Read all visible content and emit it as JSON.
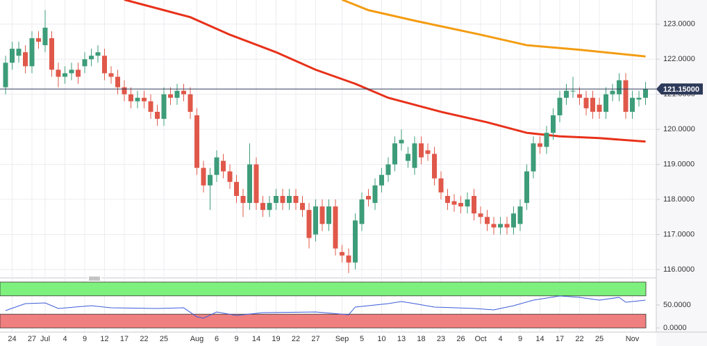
{
  "chart_data": [
    {
      "type": "candlestick",
      "categories": [
        null,
        "24",
        null,
        null,
        "27",
        null,
        "Jul",
        null,
        null,
        "4",
        null,
        null,
        "9",
        null,
        null,
        "12",
        null,
        null,
        "17",
        null,
        null,
        "22",
        null,
        null,
        "25",
        null,
        null,
        null,
        null,
        "Aug",
        null,
        null,
        "6",
        null,
        null,
        "9",
        null,
        null,
        "14",
        null,
        null,
        "19",
        null,
        null,
        "22",
        null,
        null,
        "27",
        null,
        null,
        null,
        "Sep",
        null,
        null,
        "5",
        null,
        null,
        "10",
        null,
        null,
        "13",
        null,
        null,
        "18",
        null,
        null,
        "23",
        null,
        null,
        "26",
        null,
        null,
        "Oct",
        null,
        null,
        "4",
        null,
        null,
        "9",
        null,
        null,
        "14",
        null,
        null,
        "17",
        null,
        null,
        "22",
        null,
        null,
        "25",
        null,
        null,
        null,
        null,
        "Nov",
        null,
        null
      ],
      "open": [
        121.2,
        121.9,
        122.1,
        122.2,
        121.8,
        122.6,
        122.4,
        122.6,
        121.7,
        121.5,
        121.6,
        121.7,
        121.8,
        122.0,
        122.1,
        122.1,
        121.6,
        121.5,
        121.2,
        121.0,
        120.8,
        120.9,
        120.8,
        120.5,
        120.3,
        121.0,
        120.9,
        121.1,
        121.0,
        120.4,
        118.9,
        118.4,
        118.7,
        119.1,
        118.8,
        118.5,
        118.1,
        117.9,
        119.0,
        117.9,
        117.7,
        117.9,
        118.1,
        117.9,
        118.1,
        117.9,
        117.7,
        117.0,
        117.8,
        117.3,
        117.8,
        116.5,
        116.4,
        116.2,
        117.3,
        118.1,
        117.9,
        118.4,
        118.7,
        119.0,
        119.6,
        119.1,
        118.9,
        119.6,
        119.4,
        119.3,
        118.6,
        118.1,
        117.95,
        117.9,
        117.8,
        118.1,
        117.6,
        117.5,
        117.3,
        117.2,
        117.3,
        117.2,
        117.3,
        117.9,
        118.8,
        119.6,
        119.5,
        119.9,
        120.4,
        120.9,
        121.1,
        121.0,
        120.9,
        120.9,
        120.7,
        120.5,
        121.0,
        121.0,
        121.4,
        120.5,
        120.85,
        120.9
      ],
      "high": [
        122.1,
        122.5,
        122.5,
        122.4,
        122.8,
        122.8,
        123.4,
        122.8,
        121.9,
        121.8,
        121.9,
        121.9,
        122.2,
        122.3,
        122.4,
        122.3,
        121.8,
        121.7,
        121.4,
        121.2,
        121.1,
        121.1,
        121.0,
        120.7,
        121.2,
        121.2,
        121.3,
        121.3,
        121.2,
        120.6,
        119.1,
        118.9,
        119.4,
        119.3,
        119.0,
        118.7,
        118.3,
        119.6,
        119.2,
        118.1,
        118.1,
        118.3,
        118.3,
        118.3,
        118.3,
        118.1,
        117.9,
        118.0,
        118.0,
        118.0,
        118.0,
        116.7,
        116.6,
        117.6,
        118.2,
        118.3,
        118.6,
        118.9,
        119.2,
        119.8,
        120.0,
        119.5,
        119.8,
        119.8,
        119.6,
        119.5,
        118.8,
        118.3,
        118.15,
        118.1,
        118.2,
        118.3,
        117.8,
        117.7,
        117.5,
        117.5,
        117.5,
        117.8,
        118.0,
        119.0,
        119.8,
        119.8,
        120.1,
        120.6,
        121.1,
        121.3,
        121.5,
        121.2,
        121.1,
        121.1,
        120.9,
        121.2,
        121.3,
        121.6,
        121.6,
        121.1,
        121.1,
        121.35
      ],
      "low": [
        121.0,
        121.7,
        121.9,
        121.6,
        121.6,
        122.3,
        122.2,
        121.5,
        121.2,
        121.3,
        121.4,
        121.3,
        121.6,
        121.8,
        121.9,
        121.4,
        121.3,
        121.0,
        120.8,
        120.6,
        120.6,
        120.6,
        120.3,
        120.1,
        120.1,
        120.7,
        120.7,
        120.8,
        120.3,
        118.7,
        118.2,
        117.7,
        118.5,
        118.6,
        118.3,
        117.9,
        117.5,
        117.7,
        117.7,
        117.5,
        117.5,
        117.7,
        117.7,
        117.7,
        117.7,
        117.5,
        116.6,
        116.8,
        117.1,
        117.1,
        116.4,
        116.2,
        115.9,
        116.0,
        117.1,
        117.8,
        117.7,
        118.2,
        118.5,
        118.8,
        119.4,
        118.9,
        118.7,
        119.0,
        119.1,
        118.4,
        118.0,
        117.7,
        117.65,
        117.6,
        117.6,
        117.4,
        117.3,
        117.1,
        117.0,
        117.0,
        117.0,
        117.0,
        117.1,
        117.7,
        118.6,
        119.3,
        119.3,
        119.7,
        120.2,
        120.7,
        120.9,
        120.7,
        120.4,
        120.3,
        120.3,
        120.3,
        120.8,
        120.8,
        120.3,
        120.3,
        120.65,
        120.7
      ],
      "close": [
        121.9,
        122.3,
        122.3,
        121.8,
        122.6,
        122.5,
        122.9,
        121.7,
        121.5,
        121.6,
        121.7,
        121.5,
        122.0,
        122.1,
        122.2,
        121.6,
        121.5,
        121.2,
        121.0,
        120.8,
        120.9,
        120.8,
        120.5,
        120.3,
        121.0,
        120.9,
        121.1,
        121.0,
        120.5,
        118.9,
        118.4,
        118.7,
        119.2,
        118.8,
        118.5,
        118.1,
        117.9,
        119.0,
        117.9,
        117.7,
        117.9,
        118.1,
        117.9,
        118.1,
        117.9,
        117.7,
        116.9,
        117.8,
        117.3,
        117.8,
        116.6,
        116.4,
        116.2,
        117.4,
        118.0,
        118.0,
        118.4,
        118.7,
        119.0,
        119.6,
        119.7,
        119.3,
        119.6,
        119.2,
        119.3,
        118.6,
        118.2,
        117.9,
        117.85,
        117.8,
        118.0,
        117.6,
        117.5,
        117.3,
        117.2,
        117.3,
        117.2,
        117.6,
        117.8,
        118.8,
        119.6,
        119.5,
        119.9,
        120.4,
        120.9,
        121.1,
        121.1,
        120.9,
        120.6,
        120.5,
        120.5,
        121.0,
        121.1,
        121.4,
        120.5,
        120.9,
        120.9,
        121.15
      ],
      "up_color": "#3d9c79",
      "down_color": "#e0584a",
      "series": [
        {
          "color": "#e8311a",
          "x": [
            18,
            24,
            28,
            34,
            41,
            47,
            53,
            58,
            66,
            73,
            79,
            84,
            90,
            97
          ],
          "values": [
            123.7,
            123.4,
            123.2,
            122.7,
            122.2,
            121.7,
            121.3,
            120.9,
            120.5,
            120.2,
            119.9,
            119.8,
            119.75,
            119.65
          ]
        },
        {
          "color": "#f39c12",
          "x": [
            51,
            55,
            62,
            72,
            79,
            87,
            97
          ],
          "values": [
            123.7,
            123.4,
            123.1,
            122.7,
            122.4,
            122.27,
            122.08
          ]
        }
      ],
      "last_price": {
        "value": 121.15,
        "label": "121.15000"
      },
      "ylim": [
        115.86,
        123.69
      ],
      "yticks": [
        {
          "value": 116,
          "label": "116.0000"
        },
        {
          "value": 117,
          "label": "117.0000"
        },
        {
          "value": 118,
          "label": "118.0000"
        },
        {
          "value": 119,
          "label": "119.0000"
        },
        {
          "value": 120,
          "label": "120.0000"
        },
        {
          "value": 121,
          "label": "121.0000"
        },
        {
          "value": 122,
          "label": "122.0000"
        },
        {
          "value": 123,
          "label": "123.0000"
        }
      ],
      "grid": true
    },
    {
      "type": "line",
      "series": [
        {
          "color": "#3a5bd9",
          "x": [
            0,
            3,
            6,
            8,
            13,
            16,
            23,
            27,
            29,
            30,
            32,
            35,
            39,
            47,
            52,
            53,
            58,
            60,
            62,
            65,
            71,
            74,
            77,
            80,
            84,
            87,
            90,
            93,
            94,
            97
          ],
          "values": [
            37.9,
            53,
            54.5,
            42.4,
            48.5,
            43.9,
            42.4,
            43.9,
            24.2,
            21.2,
            34.8,
            27.3,
            33.3,
            34.8,
            28.8,
            45.5,
            53,
            57.6,
            53,
            45.5,
            42.4,
            39.4,
            48.5,
            60.6,
            69.7,
            66.7,
            60.6,
            66.7,
            56.1,
            60.6
          ]
        }
      ],
      "zones": [
        {
          "from": 70,
          "to": 100,
          "color": "#7ef07e"
        },
        {
          "from": 0,
          "to": 30,
          "color": "#f07f7f"
        }
      ],
      "ylim": [
        0,
        100
      ],
      "yticks": [
        {
          "value": 0,
          "label": "0.0000"
        },
        {
          "value": 50,
          "label": "50.0000"
        }
      ]
    }
  ]
}
